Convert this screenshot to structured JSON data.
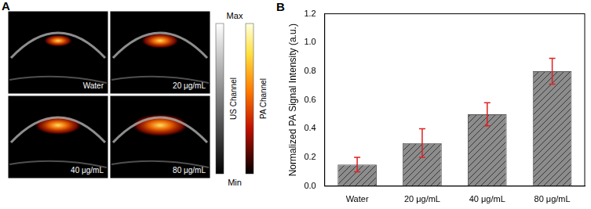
{
  "panel_a": {
    "label": "A",
    "images": [
      "Water",
      "20 μg/mL",
      "40 μg/mL",
      "80 μg/mL"
    ],
    "channels": [
      "US Channel",
      "PA Channel"
    ],
    "colorbar_labels": {
      "max": "Max",
      "min": "Min"
    }
  },
  "panel_b": {
    "label": "B"
  },
  "chart_data": {
    "type": "bar",
    "y_label": "Normalized PA Signal Intensity (a.u.)",
    "categories": [
      "Water",
      "20 μg/mL",
      "40 μg/mL",
      "80 μg/mL"
    ],
    "values": [
      0.15,
      0.3,
      0.5,
      0.8
    ],
    "errors": [
      0.05,
      0.1,
      0.08,
      0.09
    ],
    "color": "#8c8c8c",
    "ylim": [
      0,
      1.2
    ],
    "yticks": [
      {
        "value": 0,
        "label": "0.0"
      },
      {
        "value": 0.2,
        "label": "0.2"
      },
      {
        "value": 0.4,
        "label": "0.4"
      },
      {
        "value": 0.6,
        "label": "0.6"
      },
      {
        "value": 0.8,
        "label": "0.8"
      },
      {
        "value": 1.0,
        "label": "1.0"
      },
      {
        "value": 1.2,
        "label": "1.2"
      }
    ],
    "grid": false
  }
}
